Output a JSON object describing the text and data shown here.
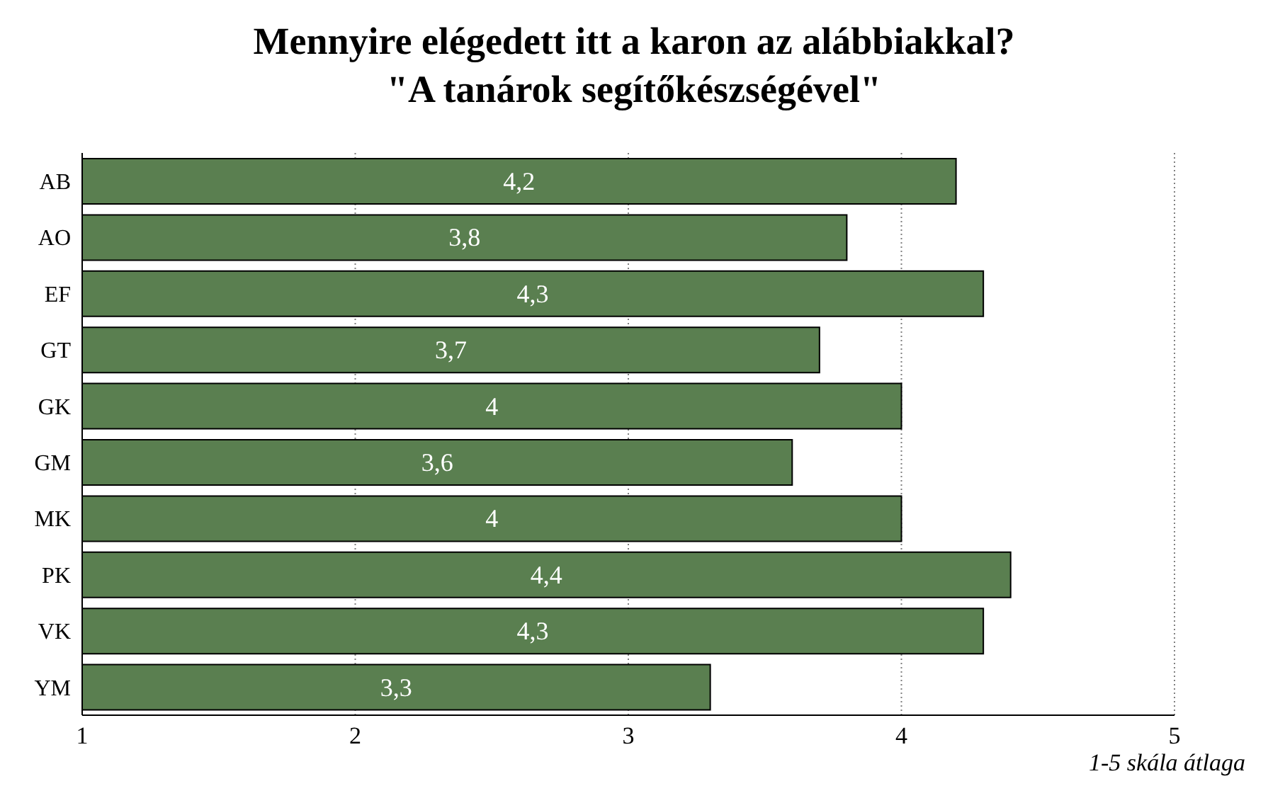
{
  "chart_data": {
    "type": "bar",
    "orientation": "horizontal",
    "title": "Mennyire elégedett itt a karon az alábbiakkal?",
    "subtitle": "\"A tanárok segítőkészségével\"",
    "categories": [
      "AB",
      "AO",
      "EF",
      "GT",
      "GK",
      "GM",
      "MK",
      "PK",
      "VK",
      "YM"
    ],
    "values": [
      4.2,
      3.8,
      4.3,
      3.7,
      4,
      3.6,
      4,
      4.4,
      4.3,
      3.3
    ],
    "value_labels": [
      "4,2",
      "3,8",
      "4,3",
      "3,7",
      "4",
      "3,6",
      "4",
      "4,4",
      "4,3",
      "3,3"
    ],
    "color": "#5a7f50",
    "xlim": [
      1,
      5
    ],
    "xticks": [
      1,
      2,
      3,
      4,
      5
    ],
    "grid": "x",
    "annotations": [
      "1-5 skála átlaga"
    ]
  }
}
